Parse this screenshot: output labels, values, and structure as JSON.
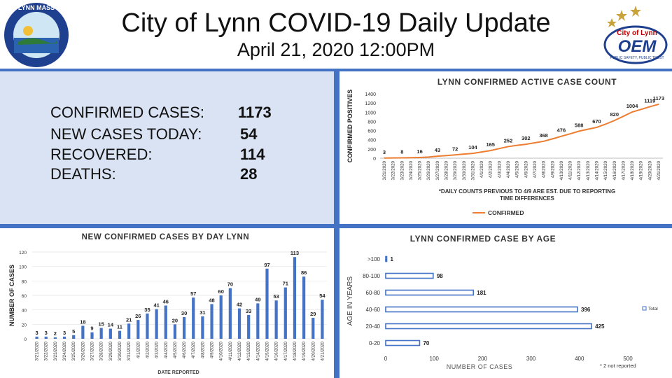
{
  "header": {
    "title": "City of Lynn COVID-19 Daily Update",
    "subtitle": "April 21, 2020 12:00PM",
    "seal_text": "LYNN MASS SETTLED 1629 INCORPORATED A CITY 1850",
    "logo_text_top": "City of Lynn",
    "logo_text_main": "OEM",
    "logo_text_bottom": "PUBLIC SAFETY, PUBLIC TRUST"
  },
  "stats": [
    {
      "label": "CONFIRMED CASES:",
      "value": "1173"
    },
    {
      "label": "NEW CASES TODAY:",
      "value": "54"
    },
    {
      "label": "RECOVERED:",
      "value": "114"
    },
    {
      "label": "DEATHS:",
      "value": "28"
    }
  ],
  "colors": {
    "line": "#ed7d31",
    "bar": "#4472c4",
    "frame": "#4472c4",
    "stats_bg": "#dae3f3"
  },
  "chart_data": [
    {
      "type": "line",
      "title": "LYNN CONFIRMED ACTIVE CASE COUNT",
      "ylabel": "CONFIRMED POSITIVES",
      "xlabel": "",
      "ylim": [
        0,
        1400
      ],
      "yticks": [
        0,
        200,
        400,
        600,
        800,
        1000,
        1200,
        1400
      ],
      "x": [
        "3/21/2020",
        "3/22/2020",
        "3/23/2020",
        "3/24/2020",
        "3/25/2020",
        "3/26/2020",
        "3/27/2020",
        "3/28/2020",
        "3/29/2020",
        "3/30/2020",
        "3/31/2020",
        "4/1/2020",
        "4/2/2020",
        "4/3/2020",
        "4/4/2020",
        "4/5/2020",
        "4/6/2020",
        "4/7/2020",
        "4/8/2020",
        "4/9/2020",
        "4/10/2020",
        "4/11/2020",
        "4/12/2020",
        "4/13/2020",
        "4/14/2020",
        "4/15/2020",
        "4/16/2020",
        "4/17/2020",
        "4/18/2020",
        "4/19/2020",
        "4/20/2020",
        "4/21/2020"
      ],
      "series": [
        {
          "name": "CONFIRMED",
          "values": [
            3,
            6,
            8,
            11,
            16,
            25,
            43,
            57,
            72,
            90,
            104,
            135,
            165,
            210,
            252,
            280,
            302,
            335,
            368,
            420,
            476,
            530,
            588,
            630,
            670,
            740,
            820,
            910,
            1004,
            1060,
            1119,
            1173
          ]
        }
      ],
      "labels": [
        {
          "index": 0,
          "text": "3"
        },
        {
          "index": 2,
          "text": "8"
        },
        {
          "index": 4,
          "text": "16"
        },
        {
          "index": 6,
          "text": "43"
        },
        {
          "index": 8,
          "text": "72"
        },
        {
          "index": 10,
          "text": "104"
        },
        {
          "index": 12,
          "text": "165"
        },
        {
          "index": 14,
          "text": "252"
        },
        {
          "index": 16,
          "text": "302"
        },
        {
          "index": 18,
          "text": "368"
        },
        {
          "index": 20,
          "text": "476"
        },
        {
          "index": 22,
          "text": "588"
        },
        {
          "index": 24,
          "text": "670"
        },
        {
          "index": 26,
          "text": "820"
        },
        {
          "index": 28,
          "text": "1004"
        },
        {
          "index": 30,
          "text": "1119"
        },
        {
          "index": 31,
          "text": "1173"
        }
      ],
      "note": "*DAILY COUNTS PREVIOUS TO 4/9 ARE EST. DUE TO REPORTING TIME DIFFERENCES",
      "legend": "bottom",
      "grid": false
    },
    {
      "type": "bar",
      "title": "NEW CONFIRMED CASES BY DAY LYNN",
      "ylabel": "NUMBER OF CASES",
      "xlabel": "DATE REPORTED",
      "ylim": [
        0,
        120
      ],
      "yticks": [
        0,
        20,
        40,
        60,
        80,
        100,
        120
      ],
      "categories": [
        "3/21/2020",
        "3/22/2020",
        "3/23/2020",
        "3/24/2020",
        "3/25/2020",
        "3/26/2020",
        "3/27/2020",
        "3/28/2020",
        "3/29/2020",
        "3/30/2020",
        "3/31/2020",
        "4/1/2020",
        "4/2/2020",
        "4/3/2020",
        "4/4/2020",
        "4/5/2020",
        "4/6/2020",
        "4/7/2020",
        "4/8/2020",
        "4/9/2020",
        "4/10/2020",
        "4/11/2020",
        "4/12/2020",
        "4/13/2020",
        "4/14/2020",
        "4/15/2020",
        "4/16/2020",
        "4/17/2020",
        "4/18/2020",
        "4/19/2020",
        "4/20/2020",
        "4/21/2020"
      ],
      "values": [
        3,
        3,
        2,
        3,
        5,
        18,
        9,
        15,
        14,
        11,
        21,
        26,
        35,
        41,
        46,
        20,
        30,
        57,
        31,
        48,
        60,
        70,
        42,
        33,
        49,
        97,
        53,
        71,
        113,
        86,
        29,
        54
      ],
      "grid": true
    },
    {
      "type": "bar",
      "orientation": "horizontal",
      "title": "LYNN CONFIRMED CASE BY AGE",
      "ylabel": "AGE IN YEARS",
      "xlabel": "NUMBER OF CASES",
      "xlim": [
        0,
        500
      ],
      "xticks": [
        0,
        100,
        200,
        300,
        400,
        500
      ],
      "categories": [
        ">100",
        "80-100",
        "60-80",
        "40-60",
        "20-40",
        "0-20"
      ],
      "values": [
        1,
        98,
        181,
        396,
        425,
        70
      ],
      "series_name": "Total",
      "legend": "right",
      "note": "* 2 not reported"
    }
  ]
}
